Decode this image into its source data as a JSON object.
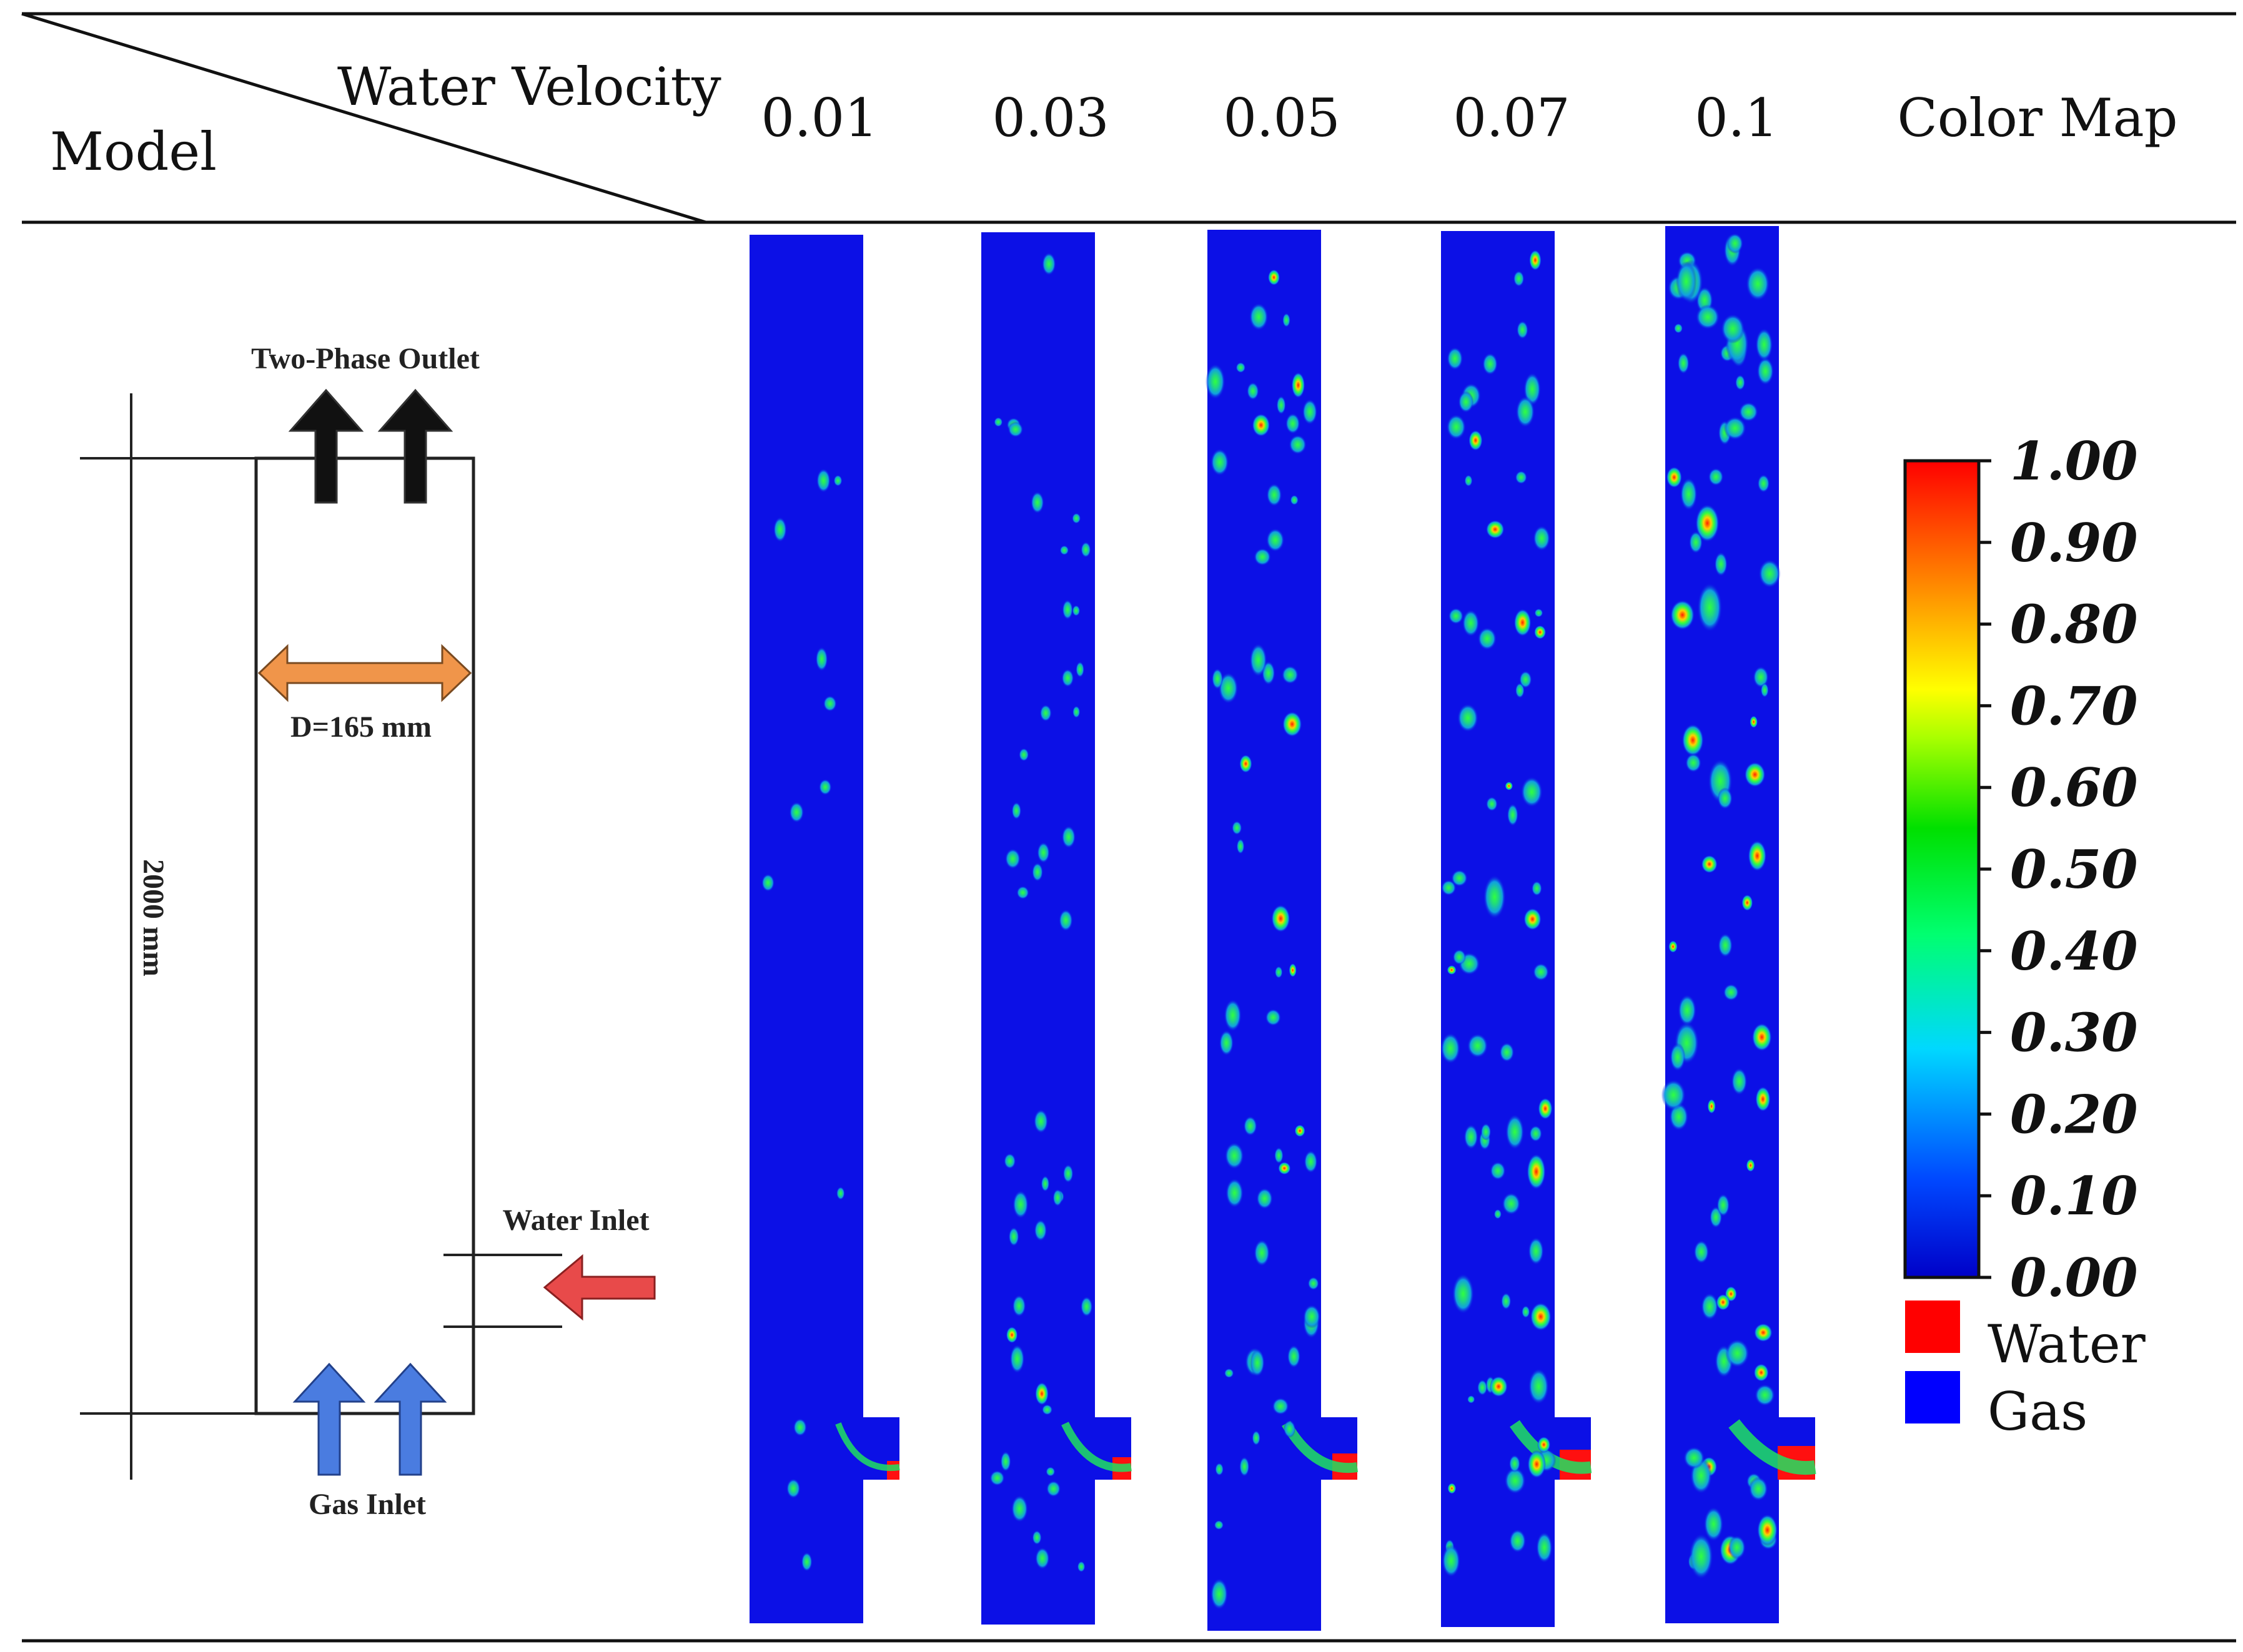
{
  "header": {
    "corner_top": "Water Velocity",
    "corner_bottom": "Model",
    "velocities": [
      "0.01",
      "0.03",
      "0.05",
      "0.07",
      "0.1"
    ],
    "color_map_title": "Color Map"
  },
  "model": {
    "outlet_label": "Two-Phase Outlet",
    "diameter_label": "D=165 mm",
    "height_label": "2000 mm",
    "water_inlet_label": "Water Inlet",
    "gas_inlet_label": "Gas Inlet"
  },
  "colorbar": {
    "ticks": [
      "1.00",
      "0.90",
      "0.80",
      "0.70",
      "0.60",
      "0.50",
      "0.40",
      "0.30",
      "0.20",
      "0.10",
      "0.00"
    ],
    "min": 0.0,
    "max": 1.0
  },
  "legend": {
    "items": [
      {
        "label": "Water",
        "color": "#ff0000"
      },
      {
        "label": "Gas",
        "color": "#0000ff"
      }
    ]
  },
  "colors": {
    "gas_blue": "#0c10e6",
    "water_red": "#ff1010",
    "outlet_arrow": "#111111",
    "diameter_arrow": "#f0954a",
    "water_arrow": "#e84a4a",
    "gas_arrow": "#4a7ce0"
  },
  "contours": [
    {
      "velocity": "0.01",
      "bubble_count": 12
    },
    {
      "velocity": "0.03",
      "bubble_count": 45
    },
    {
      "velocity": "0.05",
      "bubble_count": 55
    },
    {
      "velocity": "0.07",
      "bubble_count": 70
    },
    {
      "velocity": "0.1",
      "bubble_count": 80
    }
  ]
}
